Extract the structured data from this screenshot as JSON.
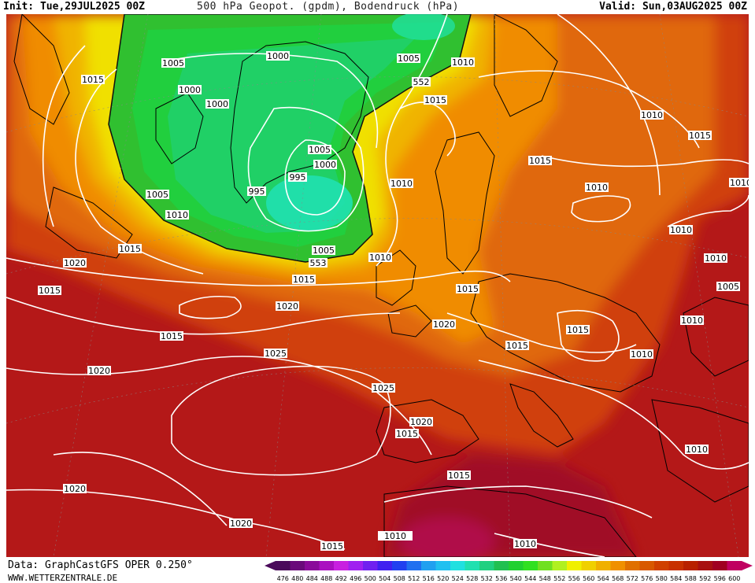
{
  "header": {
    "init": "Init: Tue,29JUL2025 00Z",
    "title": "500 hPa Geopot. (gpdm), Bodendruck (hPa)",
    "valid": "Valid: Sun,03AUG2025 00Z"
  },
  "footer": {
    "data_source": "Data: GraphCastGFS OPER 0.250°",
    "website": "WWW.WETTERZENTRALE.DE"
  },
  "legend": {
    "ticks": [
      "476",
      "480",
      "484",
      "488",
      "492",
      "496",
      "500",
      "504",
      "508",
      "512",
      "516",
      "520",
      "524",
      "528",
      "532",
      "536",
      "540",
      "544",
      "548",
      "552",
      "556",
      "560",
      "564",
      "568",
      "572",
      "576",
      "580",
      "584",
      "588",
      "592",
      "596",
      "600"
    ],
    "colors": [
      "#4a0a5a",
      "#6a0a7a",
      "#8a0a9a",
      "#aa10c0",
      "#c820e0",
      "#a020f0",
      "#7020f0",
      "#4020f0",
      "#2040f0",
      "#2070f0",
      "#20a0f0",
      "#20c0f0",
      "#20e0e0",
      "#20e0b0",
      "#20d080",
      "#20c050",
      "#20d030",
      "#30e020",
      "#70e020",
      "#b0f020",
      "#f0f000",
      "#f0d000",
      "#f0b000",
      "#f09000",
      "#e07000",
      "#d85800",
      "#d04000",
      "#c83000",
      "#b82000",
      "#a81010",
      "#a00020",
      "#c00060"
    ]
  },
  "pressure_labels": [
    "1005",
    "1015",
    "1000",
    "1000",
    "1000",
    "1005",
    "1005",
    "1010",
    "1015",
    "1005",
    "1000",
    "995",
    "995",
    "1005",
    "1010",
    "1015",
    "1020",
    "1015",
    "1015",
    "1020",
    "1020",
    "1025",
    "1025",
    "1020",
    "1020",
    "1010",
    "1015",
    "1020",
    "1015",
    "1010",
    "1010",
    "1015",
    "1010",
    "1010",
    "1015",
    "1010",
    "1010",
    "1005",
    "1010",
    "1010",
    "1015",
    "1015",
    "1010",
    "1015",
    "1015",
    "1020",
    "1015",
    "1010",
    "1010"
  ],
  "geopotential_labels": [
    "552",
    "553"
  ]
}
